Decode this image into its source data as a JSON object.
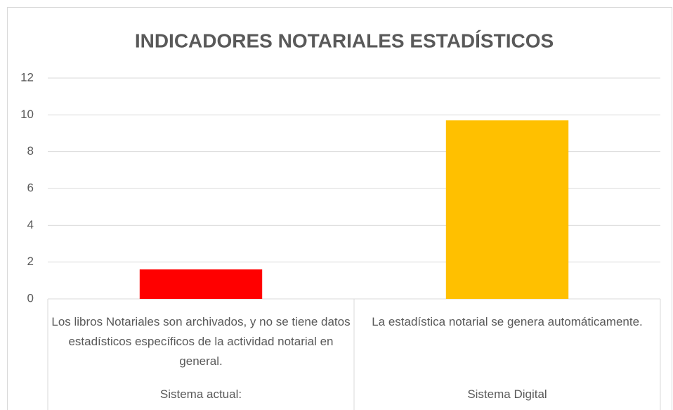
{
  "chart_data": {
    "type": "bar",
    "title": "INDICADORES NOTARIALES ESTADÍSTICOS",
    "categories": [
      "Los libros Notariales son archivados, y no se tiene datos estadísticos específicos de la actividad notarial en general.",
      "La estadística notarial se genera automáticamente."
    ],
    "category_groups": [
      "Sistema actual:",
      "Sistema Digital"
    ],
    "values": [
      1.6,
      9.7
    ],
    "colors": [
      "#ff0000",
      "#ffc000"
    ],
    "ylim": [
      0,
      12
    ],
    "yticks": [
      0,
      2,
      4,
      6,
      8,
      10,
      12
    ],
    "grid": true
  }
}
